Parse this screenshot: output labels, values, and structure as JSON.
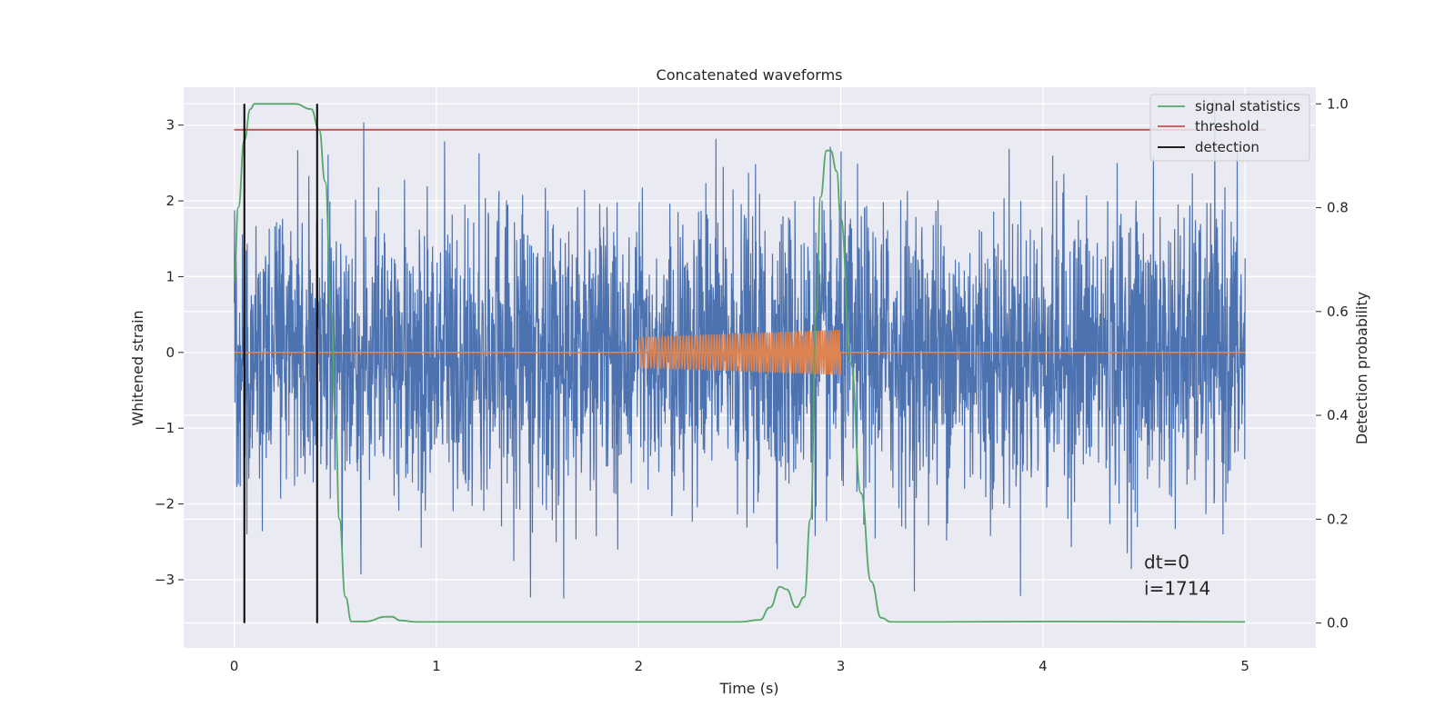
{
  "chart_data": {
    "type": "line",
    "title": "Concatenated waveforms",
    "xlabel": "Time (s)",
    "ylabel_left": "Whitened strain",
    "ylabel_right": "Detection probability",
    "xlim": [
      -0.25,
      5.35
    ],
    "ylim_left": [
      -3.9,
      3.5
    ],
    "ylim_right": [
      -0.048,
      1.032
    ],
    "x_ticks": [
      0,
      1,
      2,
      3,
      4,
      5
    ],
    "y_left_ticks": [
      -3,
      -2,
      -1,
      0,
      1,
      2,
      3
    ],
    "y_right_ticks": [
      0.0,
      0.2,
      0.4,
      0.6,
      0.8,
      1.0
    ],
    "grid": true,
    "legend_position": "top-right",
    "legend": [
      "signal statistics",
      "threshold",
      "detection"
    ],
    "series": [
      {
        "name": "whitened strain noise",
        "axis": "left",
        "color": "#4c72b0",
        "kind": "noise",
        "x_range": [
          0,
          5
        ],
        "approx_range": [
          -3.6,
          3.35
        ]
      },
      {
        "name": "injected signal",
        "axis": "left",
        "color": "#dd8452",
        "kind": "chirp",
        "x_range": [
          2,
          3
        ],
        "amplitude_start": 0.2,
        "amplitude_end": 0.3
      },
      {
        "name": "signal statistics",
        "axis": "right",
        "color": "#55a868",
        "x": [
          0.0,
          0.02,
          0.05,
          0.08,
          0.1,
          0.15,
          0.3,
          0.38,
          0.42,
          0.45,
          0.48,
          0.5,
          0.52,
          0.55,
          0.58,
          0.65,
          0.75,
          0.78,
          0.82,
          0.9,
          1.0,
          2.0,
          2.5,
          2.6,
          2.65,
          2.7,
          2.73,
          2.78,
          2.82,
          2.85,
          2.88,
          2.9,
          2.93,
          2.95,
          2.98,
          3.0,
          3.05,
          3.1,
          3.15,
          3.2,
          3.25,
          3.5,
          4.0,
          5.0
        ],
        "values": [
          0.66,
          0.8,
          0.93,
          0.99,
          1.0,
          1.0,
          1.0,
          0.99,
          0.95,
          0.85,
          0.6,
          0.4,
          0.2,
          0.05,
          0.003,
          0.003,
          0.012,
          0.012,
          0.005,
          0.002,
          0.002,
          0.002,
          0.002,
          0.006,
          0.03,
          0.07,
          0.065,
          0.03,
          0.05,
          0.2,
          0.6,
          0.82,
          0.91,
          0.91,
          0.87,
          0.78,
          0.5,
          0.25,
          0.08,
          0.01,
          0.002,
          0.002,
          0.003,
          0.002
        ]
      },
      {
        "name": "threshold",
        "axis": "right",
        "color": "#c44e52",
        "x": [
          0,
          5.1
        ],
        "values": [
          0.95,
          0.95
        ]
      },
      {
        "name": "detection",
        "axis": "right",
        "color": "#000000",
        "kind": "vertical-lines",
        "x": [
          0.05,
          0.41
        ],
        "y_range": [
          0.0,
          1.0
        ]
      }
    ],
    "annotations": [
      {
        "text": "dt=0",
        "x": 4.5,
        "y": -2.85
      },
      {
        "text": "i=1714",
        "x": 4.5,
        "y": -3.2
      }
    ]
  }
}
